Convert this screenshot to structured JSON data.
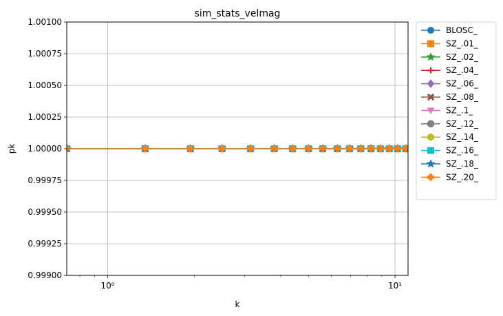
{
  "chart_data": {
    "type": "line",
    "title": "sim_stats_velmag",
    "xlabel": "k",
    "ylabel": "pk",
    "xscale": "log",
    "xlim": [
      0.72,
      11.1
    ],
    "ylim": [
      0.999,
      1.001
    ],
    "x_major_ticks": [
      {
        "value": 1,
        "label": "10⁰"
      },
      {
        "value": 10,
        "label": "10¹"
      }
    ],
    "x_minor_ticks": [
      0.8,
      0.9,
      2,
      3,
      4,
      5,
      6,
      7,
      8,
      9
    ],
    "y_ticks": [
      {
        "value": 0.999,
        "label": "0.99900"
      },
      {
        "value": 0.99925,
        "label": "0.99925"
      },
      {
        "value": 0.9995,
        "label": "0.99950"
      },
      {
        "value": 0.99975,
        "label": "0.99975"
      },
      {
        "value": 1.0,
        "label": "1.00000"
      },
      {
        "value": 1.00025,
        "label": "1.00025"
      },
      {
        "value": 1.0005,
        "label": "1.00050"
      },
      {
        "value": 1.00075,
        "label": "1.00075"
      },
      {
        "value": 1.001,
        "label": "1.00100"
      }
    ],
    "grid": true,
    "legend_position": "outside right, top",
    "x": [
      0.72,
      1.35,
      1.94,
      2.5,
      3.14,
      3.8,
      4.4,
      5.0,
      5.6,
      6.3,
      6.95,
      7.6,
      8.25,
      8.9,
      9.55,
      10.2,
      10.9
    ],
    "series": [
      {
        "name": "BLOSC_",
        "color": "#1f77b4",
        "marker": "circle",
        "values": [
          1,
          1,
          1,
          1,
          1,
          1,
          1,
          1,
          1,
          1,
          1,
          1,
          1,
          1,
          1,
          1,
          1
        ]
      },
      {
        "name": "SZ_.01_",
        "color": "#ff7f0e",
        "marker": "square",
        "values": [
          1,
          1,
          1,
          1,
          1,
          1,
          1,
          1,
          1,
          1,
          1,
          1,
          1,
          1,
          1,
          1,
          1
        ]
      },
      {
        "name": "SZ_.02_",
        "color": "#2ca02c",
        "marker": "star",
        "values": [
          1,
          1,
          1,
          1,
          1,
          1,
          1,
          1,
          1,
          1,
          1,
          1,
          1,
          1,
          1,
          1,
          1
        ]
      },
      {
        "name": "SZ_.04_",
        "color": "#d62728",
        "marker": "plus",
        "values": [
          1,
          1,
          1,
          1,
          1,
          1,
          1,
          1,
          1,
          1,
          1,
          1,
          1,
          1,
          1,
          1,
          1
        ]
      },
      {
        "name": "SZ_.06_",
        "color": "#9467bd",
        "marker": "diamond",
        "values": [
          1,
          1,
          1,
          1,
          1,
          1,
          1,
          1,
          1,
          1,
          1,
          1,
          1,
          1,
          1,
          1,
          1
        ]
      },
      {
        "name": "SZ_.08_",
        "color": "#8c564b",
        "marker": "x",
        "values": [
          1,
          1,
          1,
          1,
          1,
          1,
          1,
          1,
          1,
          1,
          1,
          1,
          1,
          1,
          1,
          1,
          1
        ]
      },
      {
        "name": "SZ_.1_",
        "color": "#e377c2",
        "marker": "triangle-down",
        "values": [
          1,
          1,
          1,
          1,
          1,
          1,
          1,
          1,
          1,
          1,
          1,
          1,
          1,
          1,
          1,
          1,
          1
        ]
      },
      {
        "name": "SZ_.12_",
        "color": "#7f7f7f",
        "marker": "octagon",
        "values": [
          1,
          1,
          1,
          1,
          1,
          1,
          1,
          1,
          1,
          1,
          1,
          1,
          1,
          1,
          1,
          1,
          1
        ]
      },
      {
        "name": "SZ_.14_",
        "color": "#bcbd22",
        "marker": "hexagon",
        "values": [
          1,
          1,
          1,
          1,
          1,
          1,
          1,
          1,
          1,
          1,
          1,
          1,
          1,
          1,
          1,
          1,
          1
        ]
      },
      {
        "name": "SZ_.16_",
        "color": "#17becf",
        "marker": "square",
        "values": [
          1,
          1,
          1,
          1,
          1,
          1,
          1,
          1,
          1,
          1,
          1,
          1,
          1,
          1,
          1,
          1,
          1
        ]
      },
      {
        "name": "SZ_.18_",
        "color": "#1f77b4",
        "marker": "star",
        "values": [
          1,
          1,
          1,
          1,
          1,
          1,
          1,
          1,
          1,
          1,
          1,
          1,
          1,
          1,
          1,
          1,
          1
        ]
      },
      {
        "name": "SZ_.20_",
        "color": "#ff7f0e",
        "marker": "plus-filled",
        "values": [
          1,
          1,
          1,
          1,
          1,
          1,
          1,
          1,
          1,
          1,
          1,
          1,
          1,
          1,
          1,
          1,
          1
        ]
      }
    ]
  }
}
